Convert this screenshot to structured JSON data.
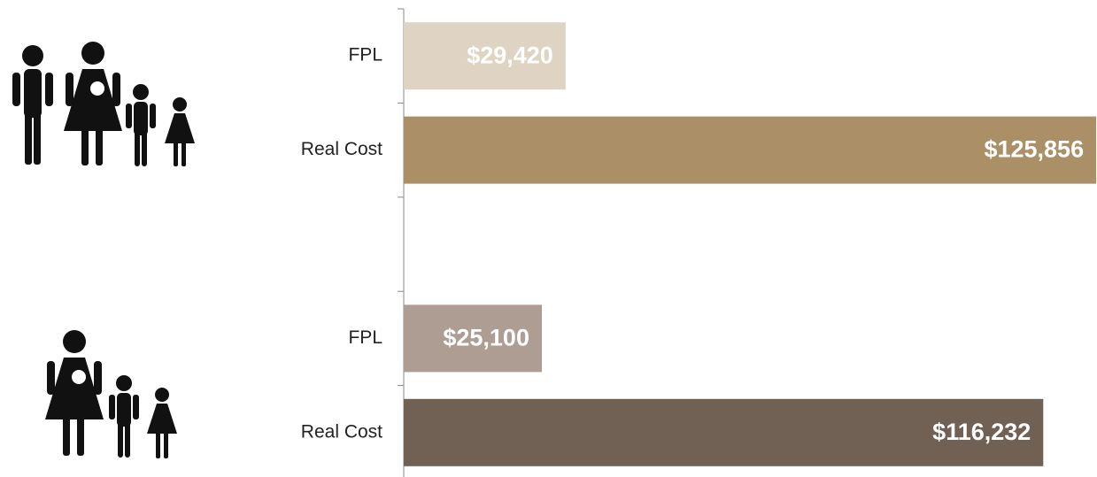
{
  "chart_data": {
    "type": "barh",
    "categories": [
      "FPL",
      "Real Cost",
      null,
      "FPL",
      "Real Cost"
    ],
    "values": [
      29420,
      125856,
      null,
      25100,
      116232
    ],
    "value_labels": [
      "$29,420",
      "$125,856",
      null,
      "$25,100",
      "$116,232"
    ],
    "colors": [
      "#dfd3c3",
      "#ab8f67",
      null,
      "#ae9d93",
      "#716155"
    ],
    "xlim": [
      0,
      126000
    ]
  }
}
